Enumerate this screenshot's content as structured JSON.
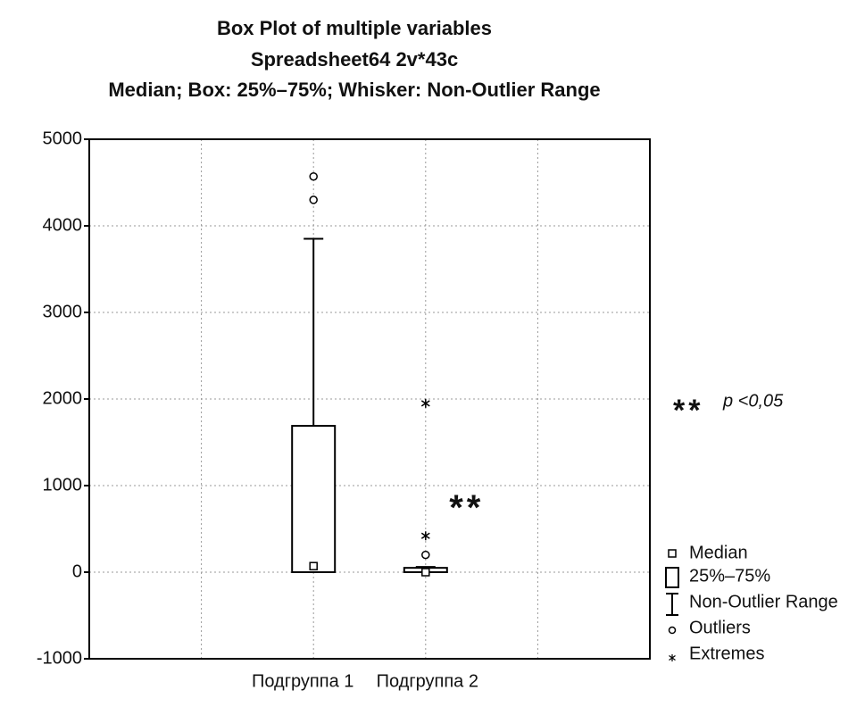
{
  "chart_data": {
    "type": "box",
    "title": "Box Plot of multiple variables",
    "subtitle": [
      "Spreadsheet64 2v*43c",
      "Median; Box: 25%–75%; Whisker: Non-Outlier Range"
    ],
    "categories": [
      "Подгруппа 1",
      "Подгруппа 2"
    ],
    "series": [
      {
        "median": 70,
        "q1": 0,
        "q3": 1690,
        "whisker_low": 0,
        "whisker_high": 3850,
        "outliers": [
          4570,
          4300
        ],
        "extremes": []
      },
      {
        "median": 0,
        "q1": 0,
        "q3": 50,
        "whisker_low": 0,
        "whisker_high": 60,
        "outliers": [
          200
        ],
        "extremes": [
          420,
          1950
        ]
      }
    ],
    "ylim": [
      -1000,
      5000
    ],
    "yticks": [
      5000,
      4000,
      3000,
      2000,
      1000,
      0,
      -1000
    ],
    "grid": true,
    "color": "#000000",
    "legend": [
      "Median",
      "25%–75%",
      "Non-Outlier Range",
      "Outliers",
      "Extremes"
    ],
    "annotations": [
      {
        "text": "**",
        "category": 1,
        "y": 800
      }
    ],
    "note": {
      "symbol": "**",
      "text": "p <0,05"
    }
  }
}
